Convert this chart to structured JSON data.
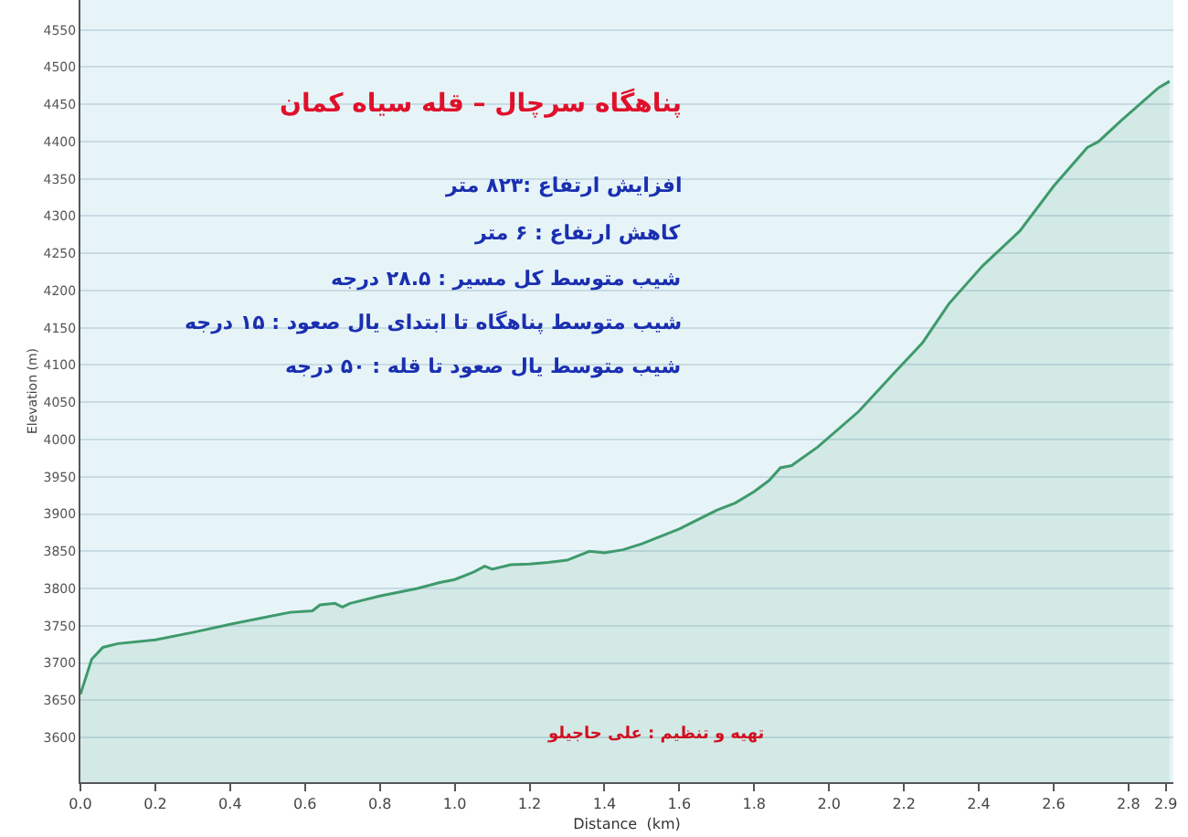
{
  "chart_data": {
    "type": "area",
    "title": "پناهگاه سرچال – قله سیاه کمان",
    "xlabel": "Distance  (km)",
    "ylabel": "Elevation (m)",
    "annotations": [
      "افزایش ارتفاع :۸۲۳ متر",
      "کاهش ارتفاع : ۶ متر",
      "شیب متوسط کل مسیر : ۲۸.۵ درجه",
      "شیب متوسط پناهگاه تا ابتدای یال صعود : ۱۵ درجه",
      "شیب متوسط یال صعود تا قله : ۵۰ درجه",
      "تهیه و تنظیم : علی حاجیلو"
    ],
    "x": [
      0,
      0.03,
      0.06,
      0.1,
      0.2,
      0.3,
      0.4,
      0.5,
      0.56,
      0.62,
      0.64,
      0.68,
      0.7,
      0.72,
      0.8,
      0.9,
      0.96,
      1.0,
      1.05,
      1.08,
      1.1,
      1.15,
      1.2,
      1.25,
      1.3,
      1.36,
      1.4,
      1.45,
      1.5,
      1.6,
      1.7,
      1.75,
      1.8,
      1.84,
      1.87,
      1.9,
      1.97,
      2.08,
      2.17,
      2.25,
      2.32,
      2.41,
      2.51,
      2.6,
      2.69,
      2.72,
      2.78,
      2.88,
      2.91
    ],
    "series": [
      {
        "color": "#3f9a6c",
        "values": [
          3658,
          3705,
          3721,
          3726,
          3731,
          3741,
          3752,
          3762,
          3768,
          3770,
          3778,
          3780,
          3775,
          3780,
          3790,
          3800,
          3808,
          3812,
          3822,
          3830,
          3826,
          3832,
          3833,
          3835,
          3838,
          3850,
          3848,
          3852,
          3860,
          3880,
          3905,
          3915,
          3930,
          3945,
          3962,
          3965,
          3990,
          4038,
          4087,
          4130,
          4182,
          4233,
          4280,
          4340,
          4392,
          4400,
          4428,
          4472,
          4481
        ]
      }
    ],
    "xlim": [
      0,
      2.92
    ],
    "xticks": [
      {
        "value": 0,
        "label": "0.0"
      },
      0.2,
      0.4,
      0.6,
      0.8,
      {
        "value": 1,
        "label": "1.0"
      },
      1.2,
      1.4,
      1.6,
      1.8,
      {
        "value": 2,
        "label": "2.0"
      },
      2.2,
      2.4,
      2.6,
      2.8,
      2.9
    ],
    "ylim": [
      3540,
      4590
    ],
    "yticks": [
      3600,
      3650,
      3700,
      3750,
      3800,
      3850,
      3900,
      3950,
      4000,
      4050,
      4100,
      4150,
      4200,
      4250,
      4300,
      4350,
      4400,
      4450,
      4500,
      4550
    ],
    "grid": "y",
    "marker": "none",
    "line_style": "solid"
  }
}
